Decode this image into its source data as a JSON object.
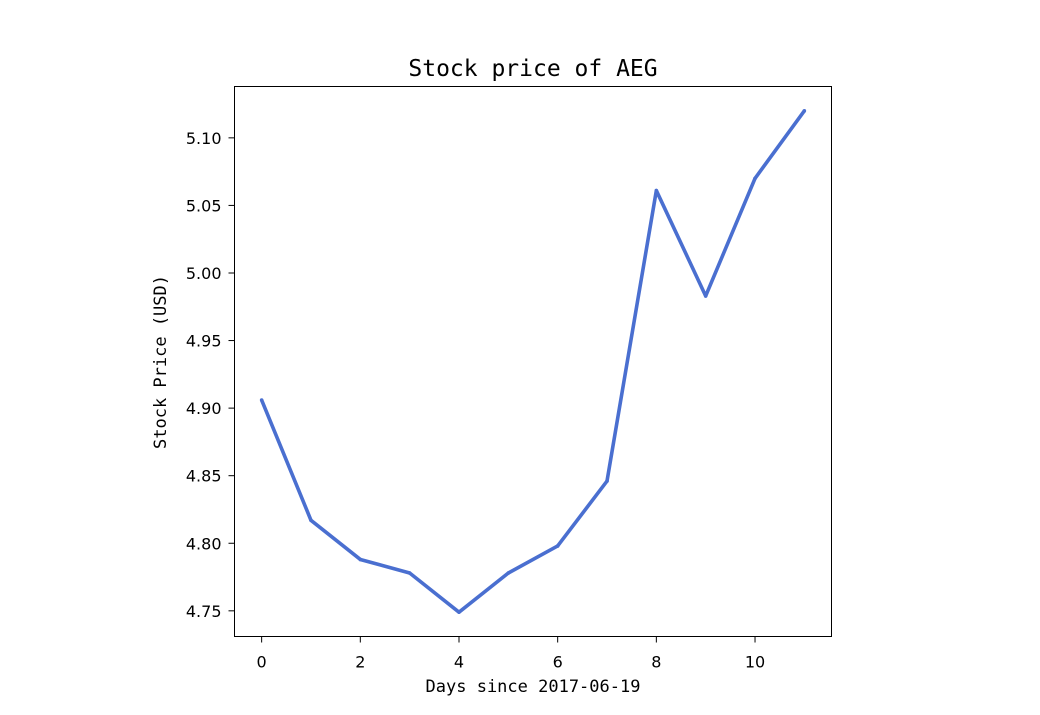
{
  "chart_data": {
    "type": "line",
    "title": "Stock price of AEG",
    "xlabel": "Days since 2017-06-19",
    "ylabel": "Stock Price (USD)",
    "x": [
      0,
      1,
      2,
      3,
      4,
      5,
      6,
      7,
      8,
      9,
      10,
      11
    ],
    "series": [
      {
        "values": [
          4.906,
          4.817,
          4.788,
          4.778,
          4.749,
          4.778,
          4.798,
          4.846,
          5.061,
          4.983,
          5.07,
          5.12
        ],
        "color": "#4a6fd0"
      }
    ],
    "xlim": [
      -0.55,
      11.55
    ],
    "ylim": [
      4.731,
      5.138
    ],
    "xticks": [
      0,
      2,
      4,
      6,
      8,
      10
    ],
    "xtick_labels": [
      "0",
      "2",
      "4",
      "6",
      "8",
      "10"
    ],
    "yticks": [
      4.75,
      4.8,
      4.85,
      4.9,
      4.95,
      5.0,
      5.05,
      5.1
    ],
    "ytick_labels": [
      "4.75",
      "4.80",
      "4.85",
      "4.90",
      "4.95",
      "5.00",
      "5.05",
      "5.10"
    ],
    "grid": false,
    "legend": false
  }
}
